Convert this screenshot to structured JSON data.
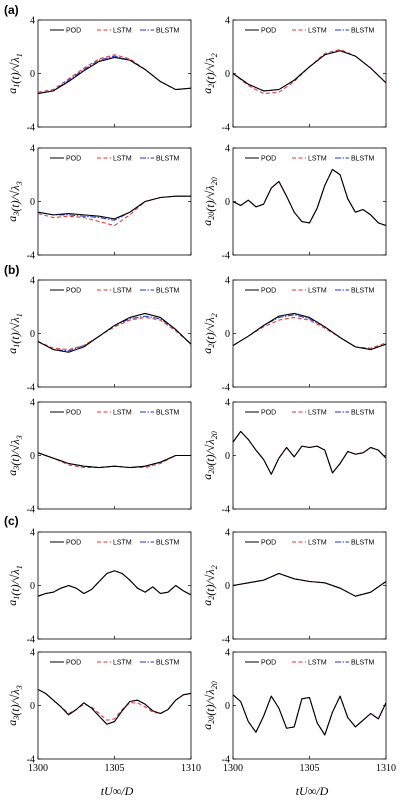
{
  "colors": {
    "POD": "#000000",
    "LSTM": "#e03030",
    "BLSTM": "#2030d0"
  },
  "panel_labels": [
    "(a)",
    "(b)",
    "(c)"
  ],
  "legend": [
    "POD",
    "LSTM",
    "BLSTM"
  ],
  "y_labels": [
    "a1(t)/√λ1",
    "a2(t)/√λ2",
    "a3(t)/√λ3",
    "a20(t)/√λ20"
  ],
  "x_label": "tU∞/D",
  "chart_data": [
    {
      "type": "line",
      "group": "(a)",
      "ylabel": "a1(t)/√λ1",
      "xlim": [
        1300,
        1310
      ],
      "ylim": [
        -4,
        4
      ],
      "yticks": [
        -4,
        0,
        4
      ],
      "xticks": [
        1300,
        1305,
        1310
      ],
      "x": [
        1300,
        1301,
        1302,
        1303,
        1304,
        1305,
        1306,
        1307,
        1308,
        1309,
        1310
      ],
      "series": [
        {
          "name": "POD",
          "values": [
            -1.5,
            -1.3,
            -0.6,
            0.2,
            0.9,
            1.2,
            1.0,
            0.3,
            -0.6,
            -1.2,
            -1.1
          ]
        },
        {
          "name": "LSTM",
          "values": [
            -1.4,
            -1.2,
            -0.4,
            0.4,
            1.1,
            1.4,
            1.1,
            0.3,
            -0.6,
            -1.2,
            -1.1
          ]
        },
        {
          "name": "BLSTM",
          "values": [
            -1.5,
            -1.3,
            -0.5,
            0.3,
            1.0,
            1.3,
            1.0,
            0.3,
            -0.6,
            -1.2,
            -1.1
          ]
        }
      ]
    },
    {
      "type": "line",
      "group": "(a)",
      "ylabel": "a2(t)/√λ2",
      "xlim": [
        1300,
        1310
      ],
      "ylim": [
        -4,
        4
      ],
      "yticks": [
        -4,
        0,
        4
      ],
      "xticks": [
        1300,
        1305,
        1310
      ],
      "x": [
        1300,
        1301,
        1302,
        1303,
        1304,
        1305,
        1306,
        1307,
        1308,
        1309,
        1310
      ],
      "series": [
        {
          "name": "POD",
          "values": [
            0.0,
            -0.8,
            -1.3,
            -1.2,
            -0.5,
            0.5,
            1.4,
            1.7,
            1.3,
            0.4,
            -0.7
          ]
        },
        {
          "name": "LSTM",
          "values": [
            0.0,
            -0.9,
            -1.5,
            -1.4,
            -0.6,
            0.5,
            1.5,
            1.8,
            1.3,
            0.4,
            -0.7
          ]
        },
        {
          "name": "BLSTM",
          "values": [
            0.0,
            -0.8,
            -1.3,
            -1.2,
            -0.5,
            0.5,
            1.4,
            1.7,
            1.3,
            0.4,
            -0.7
          ]
        }
      ]
    },
    {
      "type": "line",
      "group": "(a)",
      "ylabel": "a3(t)/√λ3",
      "xlim": [
        1300,
        1310
      ],
      "ylim": [
        -4,
        4
      ],
      "yticks": [
        -4,
        0,
        4
      ],
      "xticks": [
        1300,
        1305,
        1310
      ],
      "x": [
        1300,
        1301,
        1302,
        1303,
        1304,
        1305,
        1306,
        1307,
        1308,
        1309,
        1310
      ],
      "series": [
        {
          "name": "POD",
          "values": [
            -0.8,
            -1.0,
            -0.9,
            -1.0,
            -1.1,
            -1.3,
            -0.8,
            0.0,
            0.3,
            0.4,
            0.4
          ]
        },
        {
          "name": "LSTM",
          "values": [
            -0.9,
            -1.2,
            -1.1,
            -1.2,
            -1.5,
            -1.8,
            -1.0,
            0.0,
            0.3,
            0.4,
            0.4
          ]
        },
        {
          "name": "BLSTM",
          "values": [
            -0.8,
            -1.0,
            -1.0,
            -1.1,
            -1.2,
            -1.4,
            -0.8,
            0.0,
            0.3,
            0.4,
            0.4
          ]
        }
      ]
    },
    {
      "type": "line",
      "group": "(a)",
      "ylabel": "a20(t)/√λ20",
      "xlim": [
        1300,
        1310
      ],
      "ylim": [
        -4,
        4
      ],
      "yticks": [
        -4,
        0,
        4
      ],
      "xticks": [
        1300,
        1305,
        1310
      ],
      "x": [
        1300,
        1300.5,
        1301,
        1301.5,
        1302,
        1302.5,
        1303,
        1303.5,
        1304,
        1304.5,
        1305,
        1305.5,
        1306,
        1306.5,
        1307,
        1307.5,
        1308,
        1308.5,
        1309,
        1309.5,
        1310
      ],
      "series": [
        {
          "name": "POD",
          "values": [
            0.0,
            -0.3,
            0.1,
            -0.4,
            -0.2,
            1.0,
            1.5,
            0.4,
            -0.8,
            -1.5,
            -1.6,
            -0.5,
            1.2,
            2.4,
            2.0,
            0.2,
            -0.8,
            -0.6,
            -1.0,
            -1.6,
            -1.8
          ]
        },
        {
          "name": "LSTM",
          "values": [
            0.0,
            -0.3,
            0.1,
            -0.4,
            -0.2,
            1.0,
            1.5,
            0.4,
            -0.8,
            -1.5,
            -1.6,
            -0.5,
            1.2,
            2.4,
            2.0,
            0.2,
            -0.8,
            -0.6,
            -1.0,
            -1.6,
            -1.8
          ]
        },
        {
          "name": "BLSTM",
          "values": [
            0.0,
            -0.3,
            0.1,
            -0.4,
            -0.2,
            1.0,
            1.5,
            0.4,
            -0.8,
            -1.5,
            -1.6,
            -0.5,
            1.2,
            2.4,
            2.0,
            0.2,
            -0.8,
            -0.6,
            -1.0,
            -1.6,
            -1.8
          ]
        }
      ]
    },
    {
      "type": "line",
      "group": "(b)",
      "ylabel": "a1(t)/√λ1",
      "xlim": [
        1300,
        1310
      ],
      "ylim": [
        -4,
        4
      ],
      "yticks": [
        -4,
        0,
        4
      ],
      "xticks": [
        1300,
        1305,
        1310
      ],
      "x": [
        1300,
        1301,
        1302,
        1303,
        1304,
        1305,
        1306,
        1307,
        1308,
        1309,
        1310
      ],
      "series": [
        {
          "name": "POD",
          "values": [
            -0.6,
            -1.2,
            -1.4,
            -1.0,
            -0.2,
            0.6,
            1.2,
            1.5,
            1.2,
            0.3,
            -0.8
          ]
        },
        {
          "name": "LSTM",
          "values": [
            -0.6,
            -1.1,
            -1.2,
            -0.9,
            -0.2,
            0.5,
            1.0,
            1.2,
            1.0,
            0.2,
            -0.8
          ]
        },
        {
          "name": "BLSTM",
          "values": [
            -0.6,
            -1.2,
            -1.3,
            -0.9,
            -0.2,
            0.6,
            1.1,
            1.3,
            1.1,
            0.3,
            -0.8
          ]
        }
      ]
    },
    {
      "type": "line",
      "group": "(b)",
      "ylabel": "a2(t)/√λ2",
      "xlim": [
        1300,
        1310
      ],
      "ylim": [
        -4,
        4
      ],
      "yticks": [
        -4,
        0,
        4
      ],
      "xticks": [
        1300,
        1305,
        1310
      ],
      "x": [
        1300,
        1301,
        1302,
        1303,
        1304,
        1305,
        1306,
        1307,
        1308,
        1309,
        1310
      ],
      "series": [
        {
          "name": "POD",
          "values": [
            -0.9,
            -0.2,
            0.6,
            1.3,
            1.5,
            1.2,
            0.5,
            -0.3,
            -1.0,
            -1.2,
            -0.8
          ]
        },
        {
          "name": "LSTM",
          "values": [
            -0.9,
            -0.2,
            0.5,
            1.0,
            1.2,
            1.0,
            0.4,
            -0.3,
            -1.0,
            -1.1,
            -0.7
          ]
        },
        {
          "name": "BLSTM",
          "values": [
            -0.9,
            -0.2,
            0.6,
            1.2,
            1.4,
            1.1,
            0.5,
            -0.3,
            -1.0,
            -1.2,
            -0.8
          ]
        }
      ]
    },
    {
      "type": "line",
      "group": "(b)",
      "ylabel": "a3(t)/√λ3",
      "xlim": [
        1300,
        1310
      ],
      "ylim": [
        -4,
        4
      ],
      "yticks": [
        -4,
        0,
        4
      ],
      "xticks": [
        1300,
        1305,
        1310
      ],
      "x": [
        1300,
        1301,
        1302,
        1303,
        1304,
        1305,
        1306,
        1307,
        1308,
        1309,
        1310
      ],
      "series": [
        {
          "name": "POD",
          "values": [
            0.2,
            -0.2,
            -0.6,
            -0.8,
            -0.9,
            -0.8,
            -0.9,
            -0.8,
            -0.5,
            0.0,
            0.0
          ]
        },
        {
          "name": "LSTM",
          "values": [
            0.2,
            -0.2,
            -0.7,
            -0.9,
            -0.9,
            -0.8,
            -0.9,
            -0.9,
            -0.6,
            0.0,
            0.0
          ]
        },
        {
          "name": "BLSTM",
          "values": [
            0.2,
            -0.2,
            -0.6,
            -0.8,
            -0.9,
            -0.8,
            -0.9,
            -0.8,
            -0.5,
            0.0,
            0.0
          ]
        }
      ]
    },
    {
      "type": "line",
      "group": "(b)",
      "ylabel": "a20(t)/√λ20",
      "xlim": [
        1300,
        1310
      ],
      "ylim": [
        -4,
        4
      ],
      "yticks": [
        -4,
        0,
        4
      ],
      "xticks": [
        1300,
        1305,
        1310
      ],
      "x": [
        1300,
        1300.5,
        1301,
        1301.5,
        1302,
        1302.5,
        1303,
        1303.5,
        1304,
        1304.5,
        1305,
        1305.5,
        1306,
        1306.5,
        1307,
        1307.5,
        1308,
        1308.5,
        1309,
        1309.5,
        1310
      ],
      "series": [
        {
          "name": "POD",
          "values": [
            1.0,
            1.8,
            1.2,
            0.4,
            -0.3,
            -1.4,
            -0.2,
            0.6,
            -0.1,
            0.7,
            0.6,
            0.7,
            0.4,
            -1.3,
            -0.6,
            0.3,
            0.1,
            0.2,
            0.6,
            0.4,
            -0.2
          ]
        },
        {
          "name": "LSTM",
          "values": [
            1.0,
            1.8,
            1.2,
            0.4,
            -0.3,
            -1.4,
            -0.2,
            0.6,
            -0.1,
            0.7,
            0.6,
            0.7,
            0.4,
            -1.3,
            -0.6,
            0.3,
            0.1,
            0.2,
            0.6,
            0.4,
            -0.2
          ]
        },
        {
          "name": "BLSTM",
          "values": [
            1.0,
            1.8,
            1.2,
            0.4,
            -0.3,
            -1.4,
            -0.2,
            0.6,
            -0.1,
            0.7,
            0.6,
            0.7,
            0.4,
            -1.3,
            -0.6,
            0.3,
            0.1,
            0.2,
            0.6,
            0.4,
            -0.2
          ]
        }
      ]
    },
    {
      "type": "line",
      "group": "(c)",
      "ylabel": "a1(t)/√λ1",
      "xlim": [
        1300,
        1310
      ],
      "ylim": [
        -4,
        4
      ],
      "yticks": [
        -4,
        0,
        4
      ],
      "xticks": [
        1300,
        1305,
        1310
      ],
      "x": [
        1300,
        1300.5,
        1301,
        1301.5,
        1302,
        1302.5,
        1303,
        1303.5,
        1304,
        1304.5,
        1305,
        1305.5,
        1306,
        1306.5,
        1307,
        1307.5,
        1308,
        1308.5,
        1309,
        1309.5,
        1310
      ],
      "series": [
        {
          "name": "POD",
          "values": [
            -0.8,
            -0.6,
            -0.5,
            -0.2,
            0.0,
            -0.2,
            -0.6,
            -0.3,
            0.3,
            0.9,
            1.1,
            0.9,
            0.4,
            -0.2,
            -0.5,
            -0.1,
            -0.6,
            -0.5,
            0.0,
            -0.4,
            -0.7
          ]
        },
        {
          "name": "LSTM",
          "values": [
            -0.8,
            -0.6,
            -0.5,
            -0.2,
            0.0,
            -0.2,
            -0.6,
            -0.3,
            0.3,
            0.9,
            1.1,
            0.9,
            0.4,
            -0.2,
            -0.5,
            -0.1,
            -0.6,
            -0.5,
            0.0,
            -0.4,
            -0.7
          ]
        },
        {
          "name": "BLSTM",
          "values": [
            -0.8,
            -0.6,
            -0.5,
            -0.2,
            0.0,
            -0.2,
            -0.6,
            -0.3,
            0.3,
            0.9,
            1.1,
            0.9,
            0.4,
            -0.2,
            -0.5,
            -0.1,
            -0.6,
            -0.5,
            0.0,
            -0.4,
            -0.7
          ]
        }
      ]
    },
    {
      "type": "line",
      "group": "(c)",
      "ylabel": "a2(t)/√λ2",
      "xlim": [
        1300,
        1310
      ],
      "ylim": [
        -4,
        4
      ],
      "yticks": [
        -4,
        0,
        4
      ],
      "xticks": [
        1300,
        1305,
        1310
      ],
      "x": [
        1300,
        1301,
        1302,
        1303,
        1304,
        1305,
        1306,
        1307,
        1308,
        1309,
        1310
      ],
      "series": [
        {
          "name": "POD",
          "values": [
            0.0,
            0.2,
            0.4,
            0.9,
            0.5,
            0.3,
            0.2,
            -0.2,
            -0.8,
            -0.5,
            0.3
          ]
        },
        {
          "name": "LSTM",
          "values": [
            0.0,
            0.2,
            0.4,
            0.9,
            0.5,
            0.3,
            0.2,
            -0.2,
            -0.8,
            -0.5,
            0.3
          ]
        },
        {
          "name": "BLSTM",
          "values": [
            0.0,
            0.2,
            0.4,
            0.9,
            0.5,
            0.3,
            0.2,
            -0.2,
            -0.8,
            -0.5,
            0.3
          ]
        }
      ]
    },
    {
      "type": "line",
      "group": "(c)",
      "ylabel": "a3(t)/√λ3",
      "xlim": [
        1300,
        1310
      ],
      "ylim": [
        -4,
        4
      ],
      "yticks": [
        -4,
        0,
        4
      ],
      "xticks": [
        1300,
        1305,
        1310
      ],
      "x": [
        1300,
        1300.5,
        1301,
        1301.5,
        1302,
        1302.5,
        1303,
        1303.5,
        1304,
        1304.5,
        1305,
        1305.5,
        1306,
        1306.5,
        1307,
        1307.5,
        1308,
        1308.5,
        1309,
        1309.5,
        1310
      ],
      "series": [
        {
          "name": "POD",
          "values": [
            1.2,
            0.9,
            0.4,
            -0.1,
            -0.7,
            -0.3,
            0.2,
            -0.2,
            -0.8,
            -1.4,
            -1.2,
            -0.4,
            0.3,
            0.4,
            0.1,
            -0.4,
            -0.6,
            -0.3,
            0.4,
            0.8,
            0.9
          ]
        },
        {
          "name": "LSTM",
          "values": [
            1.2,
            0.9,
            0.4,
            -0.1,
            -0.6,
            -0.3,
            0.1,
            -0.1,
            -0.6,
            -1.1,
            -1.0,
            -0.3,
            0.2,
            0.2,
            -0.1,
            -0.5,
            -0.6,
            -0.3,
            0.4,
            0.8,
            0.9
          ]
        },
        {
          "name": "BLSTM",
          "values": [
            1.2,
            0.9,
            0.4,
            -0.1,
            -0.7,
            -0.3,
            0.2,
            -0.2,
            -0.8,
            -1.4,
            -1.2,
            -0.4,
            0.3,
            0.4,
            0.1,
            -0.4,
            -0.6,
            -0.3,
            0.4,
            0.8,
            0.9
          ]
        }
      ]
    },
    {
      "type": "line",
      "group": "(c)",
      "ylabel": "a20(t)/√λ20",
      "xlim": [
        1300,
        1310
      ],
      "ylim": [
        -4,
        4
      ],
      "yticks": [
        -4,
        0,
        4
      ],
      "xticks": [
        1300,
        1305,
        1310
      ],
      "x": [
        1300,
        1300.5,
        1301,
        1301.5,
        1302,
        1302.5,
        1303,
        1303.5,
        1304,
        1304.5,
        1305,
        1305.5,
        1306,
        1306.5,
        1307,
        1307.5,
        1308,
        1308.5,
        1309,
        1309.5,
        1310
      ],
      "series": [
        {
          "name": "POD",
          "values": [
            0.8,
            0.3,
            -1.2,
            -2.0,
            -0.8,
            0.7,
            -0.2,
            -1.7,
            -1.6,
            0.5,
            0.6,
            -1.3,
            -2.2,
            -0.5,
            0.7,
            -0.9,
            -1.6,
            -1.1,
            -0.6,
            -1.0,
            0.2
          ]
        },
        {
          "name": "LSTM",
          "values": [
            0.8,
            0.3,
            -1.2,
            -2.0,
            -0.8,
            0.7,
            -0.2,
            -1.7,
            -1.6,
            0.5,
            0.6,
            -1.3,
            -2.2,
            -0.5,
            0.7,
            -0.9,
            -1.6,
            -1.1,
            -0.6,
            -1.0,
            0.2
          ]
        },
        {
          "name": "BLSTM",
          "values": [
            0.8,
            0.3,
            -1.2,
            -2.0,
            -0.8,
            0.7,
            -0.2,
            -1.7,
            -1.6,
            0.5,
            0.6,
            -1.3,
            -2.2,
            -0.5,
            0.7,
            -0.9,
            -1.6,
            -1.1,
            -0.6,
            -1.0,
            0.2
          ]
        }
      ]
    }
  ]
}
